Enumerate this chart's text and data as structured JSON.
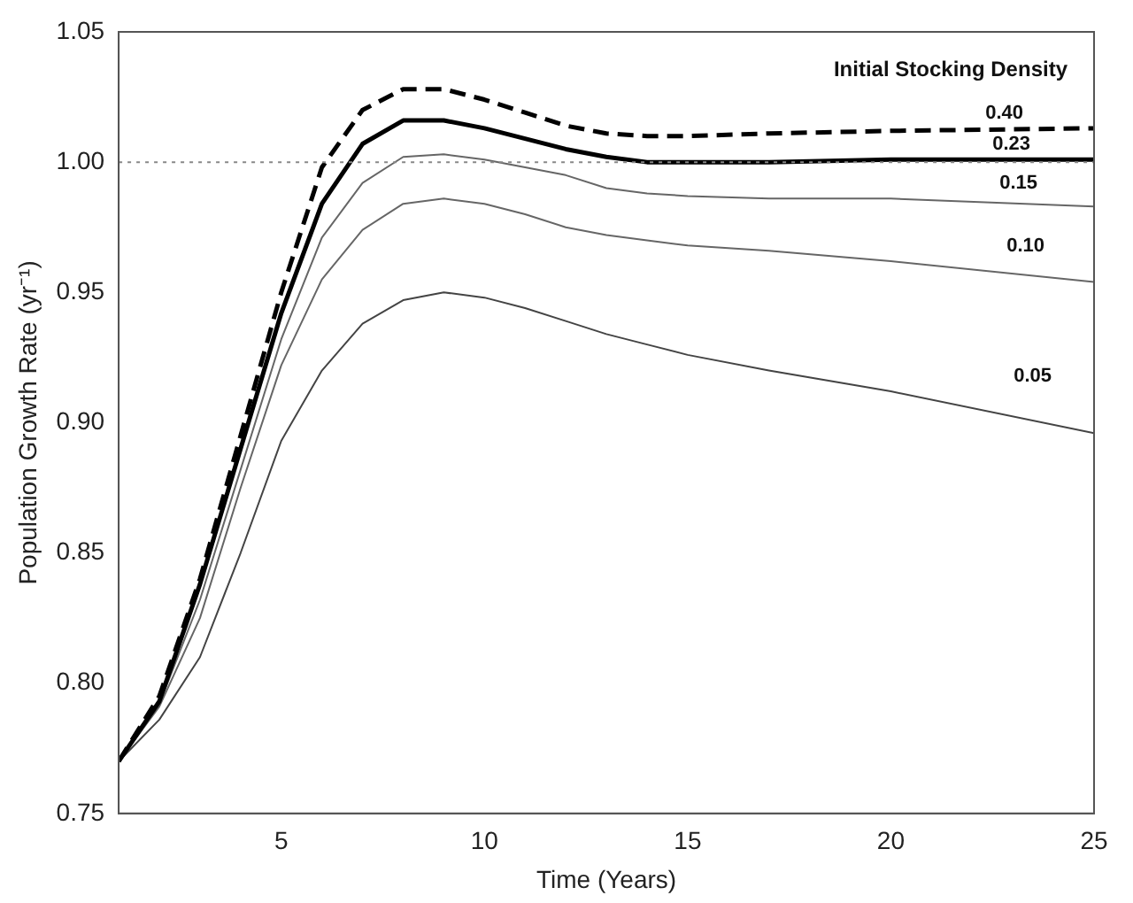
{
  "chart_data": {
    "type": "line",
    "xlabel": "Time (Years)",
    "ylabel": "Population Growth Rate (yr⁻¹)",
    "legend_title": "Initial Stocking Density",
    "x": [
      1,
      2,
      3,
      4,
      5,
      6,
      7,
      8,
      9,
      10,
      11,
      12,
      13,
      14,
      15,
      17,
      20,
      25
    ],
    "series": [
      {
        "name": "0.40",
        "color": "#000000",
        "line_style": "dashed",
        "values": [
          0.77,
          0.795,
          0.84,
          0.895,
          0.95,
          0.998,
          1.02,
          1.028,
          1.028,
          1.024,
          1.019,
          1.014,
          1.011,
          1.01,
          1.01,
          1.011,
          1.012,
          1.013
        ]
      },
      {
        "name": "0.23",
        "color": "#000000",
        "line_style": "solid",
        "values": [
          0.77,
          0.793,
          0.838,
          0.89,
          0.942,
          0.984,
          1.007,
          1.016,
          1.016,
          1.013,
          1.009,
          1.005,
          1.002,
          1.0,
          1.0,
          1.0,
          1.001,
          1.001
        ]
      },
      {
        "name": "0.15",
        "color": "#666666",
        "line_style": "solid",
        "values": [
          0.77,
          0.792,
          0.832,
          0.882,
          0.932,
          0.971,
          0.992,
          1.002,
          1.003,
          1.001,
          0.998,
          0.995,
          0.99,
          0.988,
          0.987,
          0.986,
          0.986,
          0.983
        ]
      },
      {
        "name": "0.10",
        "color": "#666666",
        "line_style": "solid",
        "values": [
          0.77,
          0.791,
          0.825,
          0.875,
          0.922,
          0.955,
          0.974,
          0.984,
          0.986,
          0.984,
          0.98,
          0.975,
          0.972,
          0.97,
          0.968,
          0.966,
          0.962,
          0.954
        ]
      },
      {
        "name": "0.05",
        "color": "#444444",
        "line_style": "solid",
        "values": [
          0.77,
          0.786,
          0.81,
          0.85,
          0.893,
          0.92,
          0.938,
          0.947,
          0.95,
          0.948,
          0.944,
          0.939,
          0.934,
          0.93,
          0.926,
          0.92,
          0.912,
          0.896
        ]
      }
    ],
    "xlim": [
      1,
      25
    ],
    "xticks": [
      5,
      10,
      15,
      20,
      25
    ],
    "ylim": [
      0.75,
      1.05
    ],
    "yticks": [
      {
        "value": 0.75,
        "label": "0.75"
      },
      {
        "value": 0.8,
        "label": "0.80"
      },
      {
        "value": 0.85,
        "label": "0.85"
      },
      {
        "value": 0.9,
        "label": "0.90"
      },
      {
        "value": 0.95,
        "label": "0.95"
      },
      {
        "value": 1.0,
        "label": "1.00"
      },
      {
        "value": 1.05,
        "label": "1.05"
      }
    ],
    "ref_lines": [
      {
        "axis": "y",
        "value": 1.0,
        "color": "#888888",
        "line_style": "dotted"
      }
    ],
    "grid": false,
    "legend": false,
    "marker": "none"
  }
}
